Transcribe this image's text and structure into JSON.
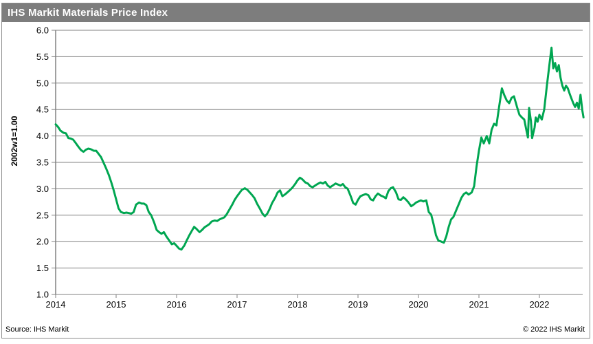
{
  "title": "IHS Markit Materials Price Index",
  "footer": {
    "source": "Source: IHS Markit",
    "copyright": "© 2022  IHS Markit"
  },
  "colors": {
    "title_bar_bg": "#7d7d7d",
    "title_text": "#ffffff",
    "line": "#00a651",
    "grid": "#808080",
    "frame_border": "#8c8c8c",
    "label_text": "#000000"
  },
  "chart_data": {
    "type": "line",
    "title": "IHS Markit Materials Price Index",
    "ylabel": "2002w1=1.00",
    "xlabel": "",
    "ylim": [
      1.0,
      6.0
    ],
    "ytick_step": 0.5,
    "xlim": [
      2014,
      2022.75
    ],
    "xticks": [
      2014,
      2015,
      2016,
      2017,
      2018,
      2019,
      2020,
      2021,
      2022
    ],
    "grid": "horizontal",
    "legend": "none",
    "series": [
      {
        "name": "Materials Price Index",
        "color": "#00a651",
        "points": [
          [
            2014.0,
            4.22
          ],
          [
            2014.04,
            4.17
          ],
          [
            2014.08,
            4.1
          ],
          [
            2014.13,
            4.06
          ],
          [
            2014.17,
            4.05
          ],
          [
            2014.21,
            3.96
          ],
          [
            2014.25,
            3.95
          ],
          [
            2014.29,
            3.93
          ],
          [
            2014.33,
            3.87
          ],
          [
            2014.38,
            3.79
          ],
          [
            2014.42,
            3.73
          ],
          [
            2014.46,
            3.7
          ],
          [
            2014.5,
            3.74
          ],
          [
            2014.54,
            3.76
          ],
          [
            2014.58,
            3.75
          ],
          [
            2014.63,
            3.72
          ],
          [
            2014.67,
            3.72
          ],
          [
            2014.71,
            3.66
          ],
          [
            2014.75,
            3.6
          ],
          [
            2014.79,
            3.5
          ],
          [
            2014.83,
            3.4
          ],
          [
            2014.88,
            3.26
          ],
          [
            2014.92,
            3.12
          ],
          [
            2014.96,
            2.97
          ],
          [
            2015.0,
            2.8
          ],
          [
            2015.04,
            2.63
          ],
          [
            2015.08,
            2.56
          ],
          [
            2015.13,
            2.54
          ],
          [
            2015.17,
            2.55
          ],
          [
            2015.21,
            2.54
          ],
          [
            2015.25,
            2.53
          ],
          [
            2015.29,
            2.56
          ],
          [
            2015.33,
            2.7
          ],
          [
            2015.38,
            2.74
          ],
          [
            2015.42,
            2.72
          ],
          [
            2015.46,
            2.72
          ],
          [
            2015.5,
            2.69
          ],
          [
            2015.54,
            2.56
          ],
          [
            2015.58,
            2.5
          ],
          [
            2015.63,
            2.36
          ],
          [
            2015.67,
            2.22
          ],
          [
            2015.71,
            2.18
          ],
          [
            2015.75,
            2.15
          ],
          [
            2015.79,
            2.18
          ],
          [
            2015.83,
            2.1
          ],
          [
            2015.88,
            2.02
          ],
          [
            2015.92,
            1.95
          ],
          [
            2015.96,
            1.97
          ],
          [
            2016.0,
            1.92
          ],
          [
            2016.04,
            1.87
          ],
          [
            2016.08,
            1.85
          ],
          [
            2016.13,
            1.93
          ],
          [
            2016.17,
            2.03
          ],
          [
            2016.21,
            2.12
          ],
          [
            2016.25,
            2.2
          ],
          [
            2016.29,
            2.28
          ],
          [
            2016.33,
            2.24
          ],
          [
            2016.38,
            2.18
          ],
          [
            2016.42,
            2.22
          ],
          [
            2016.46,
            2.27
          ],
          [
            2016.5,
            2.3
          ],
          [
            2016.54,
            2.33
          ],
          [
            2016.58,
            2.38
          ],
          [
            2016.63,
            2.4
          ],
          [
            2016.67,
            2.39
          ],
          [
            2016.71,
            2.42
          ],
          [
            2016.75,
            2.44
          ],
          [
            2016.79,
            2.46
          ],
          [
            2016.83,
            2.52
          ],
          [
            2016.88,
            2.62
          ],
          [
            2016.92,
            2.7
          ],
          [
            2016.96,
            2.79
          ],
          [
            2017.0,
            2.86
          ],
          [
            2017.04,
            2.92
          ],
          [
            2017.08,
            2.98
          ],
          [
            2017.13,
            3.01
          ],
          [
            2017.17,
            2.98
          ],
          [
            2017.21,
            2.93
          ],
          [
            2017.25,
            2.88
          ],
          [
            2017.29,
            2.82
          ],
          [
            2017.33,
            2.72
          ],
          [
            2017.38,
            2.62
          ],
          [
            2017.42,
            2.53
          ],
          [
            2017.46,
            2.48
          ],
          [
            2017.5,
            2.53
          ],
          [
            2017.54,
            2.62
          ],
          [
            2017.58,
            2.73
          ],
          [
            2017.63,
            2.83
          ],
          [
            2017.67,
            2.93
          ],
          [
            2017.71,
            2.97
          ],
          [
            2017.75,
            2.86
          ],
          [
            2017.79,
            2.89
          ],
          [
            2017.83,
            2.93
          ],
          [
            2017.88,
            2.98
          ],
          [
            2017.92,
            3.03
          ],
          [
            2017.96,
            3.09
          ],
          [
            2018.0,
            3.16
          ],
          [
            2018.04,
            3.21
          ],
          [
            2018.08,
            3.18
          ],
          [
            2018.13,
            3.12
          ],
          [
            2018.17,
            3.1
          ],
          [
            2018.21,
            3.05
          ],
          [
            2018.25,
            3.03
          ],
          [
            2018.29,
            3.06
          ],
          [
            2018.33,
            3.09
          ],
          [
            2018.38,
            3.12
          ],
          [
            2018.42,
            3.1
          ],
          [
            2018.46,
            3.13
          ],
          [
            2018.5,
            3.06
          ],
          [
            2018.54,
            3.03
          ],
          [
            2018.58,
            3.06
          ],
          [
            2018.63,
            3.1
          ],
          [
            2018.67,
            3.08
          ],
          [
            2018.71,
            3.06
          ],
          [
            2018.75,
            3.09
          ],
          [
            2018.79,
            3.03
          ],
          [
            2018.83,
            3.0
          ],
          [
            2018.88,
            2.86
          ],
          [
            2018.92,
            2.73
          ],
          [
            2018.96,
            2.7
          ],
          [
            2019.0,
            2.79
          ],
          [
            2019.04,
            2.86
          ],
          [
            2019.08,
            2.88
          ],
          [
            2019.13,
            2.9
          ],
          [
            2019.17,
            2.88
          ],
          [
            2019.21,
            2.8
          ],
          [
            2019.25,
            2.78
          ],
          [
            2019.29,
            2.86
          ],
          [
            2019.33,
            2.91
          ],
          [
            2019.38,
            2.87
          ],
          [
            2019.42,
            2.85
          ],
          [
            2019.46,
            2.82
          ],
          [
            2019.5,
            2.95
          ],
          [
            2019.54,
            3.01
          ],
          [
            2019.58,
            3.03
          ],
          [
            2019.63,
            2.93
          ],
          [
            2019.67,
            2.8
          ],
          [
            2019.71,
            2.79
          ],
          [
            2019.75,
            2.84
          ],
          [
            2019.79,
            2.8
          ],
          [
            2019.83,
            2.75
          ],
          [
            2019.88,
            2.67
          ],
          [
            2019.92,
            2.7
          ],
          [
            2019.96,
            2.74
          ],
          [
            2020.0,
            2.76
          ],
          [
            2020.04,
            2.78
          ],
          [
            2020.08,
            2.76
          ],
          [
            2020.13,
            2.78
          ],
          [
            2020.17,
            2.56
          ],
          [
            2020.21,
            2.51
          ],
          [
            2020.25,
            2.33
          ],
          [
            2020.29,
            2.12
          ],
          [
            2020.33,
            2.02
          ],
          [
            2020.38,
            2.0
          ],
          [
            2020.42,
            1.98
          ],
          [
            2020.46,
            2.1
          ],
          [
            2020.5,
            2.28
          ],
          [
            2020.54,
            2.42
          ],
          [
            2020.58,
            2.47
          ],
          [
            2020.63,
            2.61
          ],
          [
            2020.67,
            2.72
          ],
          [
            2020.71,
            2.83
          ],
          [
            2020.75,
            2.9
          ],
          [
            2020.79,
            2.93
          ],
          [
            2020.83,
            2.89
          ],
          [
            2020.88,
            2.93
          ],
          [
            2020.92,
            3.05
          ],
          [
            2020.96,
            3.42
          ],
          [
            2021.0,
            3.72
          ],
          [
            2021.04,
            3.97
          ],
          [
            2021.08,
            3.86
          ],
          [
            2021.13,
            4.0
          ],
          [
            2021.17,
            3.86
          ],
          [
            2021.21,
            4.12
          ],
          [
            2021.25,
            4.23
          ],
          [
            2021.29,
            4.2
          ],
          [
            2021.33,
            4.52
          ],
          [
            2021.38,
            4.9
          ],
          [
            2021.42,
            4.77
          ],
          [
            2021.46,
            4.67
          ],
          [
            2021.5,
            4.62
          ],
          [
            2021.54,
            4.72
          ],
          [
            2021.58,
            4.75
          ],
          [
            2021.63,
            4.55
          ],
          [
            2021.67,
            4.4
          ],
          [
            2021.71,
            4.35
          ],
          [
            2021.75,
            4.31
          ],
          [
            2021.79,
            4.08
          ],
          [
            2021.81,
            3.97
          ],
          [
            2021.83,
            4.53
          ],
          [
            2021.86,
            4.28
          ],
          [
            2021.88,
            3.96
          ],
          [
            2021.92,
            4.16
          ],
          [
            2021.94,
            4.35
          ],
          [
            2021.97,
            4.27
          ],
          [
            2022.0,
            4.4
          ],
          [
            2022.04,
            4.31
          ],
          [
            2022.08,
            4.5
          ],
          [
            2022.12,
            4.92
          ],
          [
            2022.16,
            5.3
          ],
          [
            2022.2,
            5.67
          ],
          [
            2022.23,
            5.28
          ],
          [
            2022.26,
            5.38
          ],
          [
            2022.29,
            5.22
          ],
          [
            2022.32,
            5.34
          ],
          [
            2022.35,
            5.1
          ],
          [
            2022.38,
            4.95
          ],
          [
            2022.41,
            4.86
          ],
          [
            2022.44,
            4.95
          ],
          [
            2022.47,
            4.9
          ],
          [
            2022.5,
            4.8
          ],
          [
            2022.53,
            4.71
          ],
          [
            2022.56,
            4.62
          ],
          [
            2022.59,
            4.55
          ],
          [
            2022.62,
            4.63
          ],
          [
            2022.65,
            4.52
          ],
          [
            2022.68,
            4.78
          ],
          [
            2022.71,
            4.48
          ],
          [
            2022.73,
            4.35
          ]
        ]
      }
    ]
  }
}
